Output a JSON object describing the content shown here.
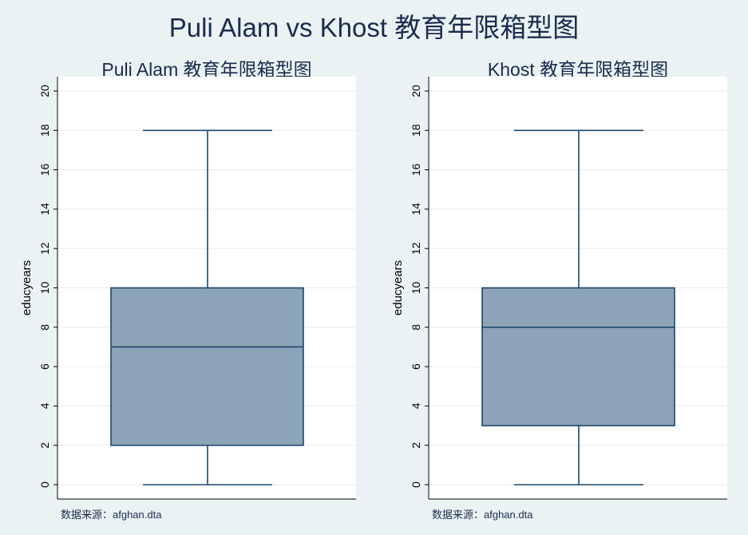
{
  "title": "Puli Alam vs Khost 教育年限箱型图",
  "colors": {
    "background": "#eaf2f3",
    "plot_area": "#ffffff",
    "box_fill": "#8da3b7",
    "line": "#1a476f",
    "grid": "#eaeaea",
    "text": "#1a2c4e"
  },
  "chart_data": [
    {
      "type": "box",
      "title": "Puli Alam 教育年限箱型图",
      "ylabel": "educyears",
      "ylim": [
        0,
        20
      ],
      "yticks": [
        "0",
        "2",
        "4",
        "6",
        "8",
        "10",
        "12",
        "14",
        "16",
        "18",
        "20"
      ],
      "grid": true,
      "box": {
        "whisker_low": 0,
        "q1": 2,
        "median": 7,
        "q3": 10,
        "whisker_high": 18
      },
      "note": "数据来源：afghan.dta"
    },
    {
      "type": "box",
      "title": "Khost 教育年限箱型图",
      "ylabel": "educyears",
      "ylim": [
        0,
        20
      ],
      "yticks": [
        "0",
        "2",
        "4",
        "6",
        "8",
        "10",
        "12",
        "14",
        "16",
        "18",
        "20"
      ],
      "grid": true,
      "box": {
        "whisker_low": 0,
        "q1": 3,
        "median": 8,
        "q3": 10,
        "whisker_high": 18
      },
      "note": "数据来源：afghan.dta"
    }
  ]
}
